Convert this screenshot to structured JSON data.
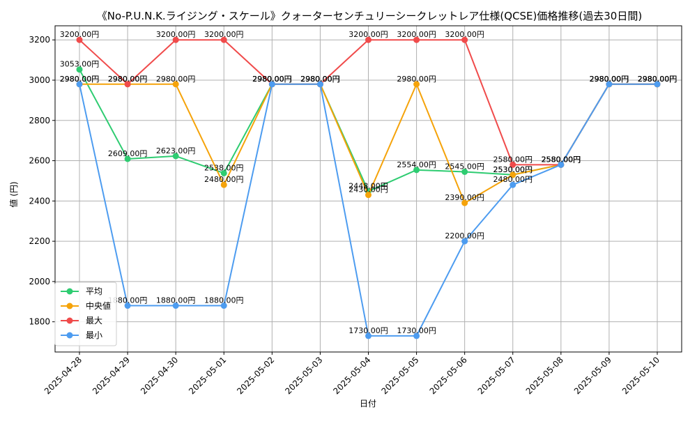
{
  "chart_data": {
    "type": "line",
    "title": "《No-P.U.N.K.ライジング・スケール》クォーターセンチュリーシークレットレア仕様(QCSE)価格推移(過去30日間)",
    "xlabel": "日付",
    "ylabel": "値 (円)",
    "categories": [
      "2025-04-28",
      "2025-04-29",
      "2025-04-30",
      "2025-05-01",
      "2025-05-02",
      "2025-05-03",
      "2025-05-04",
      "2025-05-05",
      "2025-05-06",
      "2025-05-07",
      "2025-05-08",
      "2025-05-09",
      "2025-05-10"
    ],
    "ylim": [
      1650,
      3270
    ],
    "yticks": [
      1800,
      2000,
      2200,
      2400,
      2600,
      2800,
      3000,
      3200
    ],
    "grid": true,
    "legend_position": "lower-left",
    "label_suffix": "円",
    "series": [
      {
        "name": "平均",
        "color": "#2ecc71",
        "values": [
          3053,
          2609,
          2623,
          2538,
          2980,
          2980,
          2448,
          2554,
          2545,
          2530,
          2580,
          2980,
          2980
        ]
      },
      {
        "name": "中央値",
        "color": "#f5a30a",
        "values": [
          2980,
          2980,
          2980,
          2480,
          2980,
          2980,
          2430,
          2980,
          2390,
          2530,
          2580,
          2980,
          2980
        ]
      },
      {
        "name": "最大",
        "color": "#f04b4b",
        "values": [
          3200,
          2980,
          3200,
          3200,
          2980,
          2980,
          3200,
          3200,
          3200,
          2580,
          2580,
          2980,
          2980
        ]
      },
      {
        "name": "最小",
        "color": "#4d9cf0",
        "values": [
          2980,
          1880,
          1880,
          1880,
          2980,
          2980,
          1730,
          1730,
          2200,
          2480,
          2580,
          2980,
          2980
        ]
      }
    ]
  }
}
